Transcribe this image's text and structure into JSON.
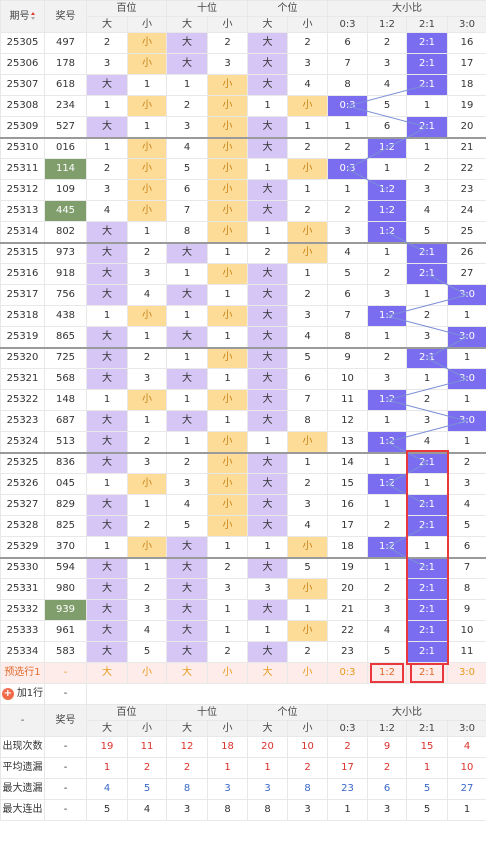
{
  "header": {
    "col_qihao": "期号",
    "col_jianghao": "奖号",
    "bai": "百位",
    "shi": "十位",
    "ge": "个位",
    "dxb": "大小比",
    "da": "大",
    "xiao": "小",
    "r03": "0:3",
    "r12": "1:2",
    "r21": "2:1",
    "r30": "3:0"
  },
  "rows": [
    [
      "25305",
      "497",
      "2",
      "小",
      "大",
      "2",
      "大",
      "2",
      "6",
      "2",
      "2:1",
      "16"
    ],
    [
      "25306",
      "178",
      "3",
      "小",
      "大",
      "3",
      "大",
      "3",
      "7",
      "3",
      "2:1",
      "17"
    ],
    [
      "25307",
      "618",
      "大",
      "1",
      "1",
      "小",
      "大",
      "4",
      "8",
      "4",
      "2:1",
      "18"
    ],
    [
      "25308",
      "234",
      "1",
      "小",
      "2",
      "小",
      "1",
      "小",
      "0:3",
      "5",
      "1",
      "19"
    ],
    [
      "25309",
      "527",
      "大",
      "1",
      "3",
      "小",
      "大",
      "1",
      "1",
      "6",
      "2:1",
      "20"
    ],
    [
      "25310",
      "016",
      "1",
      "小",
      "4",
      "小",
      "大",
      "2",
      "2",
      "1:2",
      "1",
      "21"
    ],
    [
      "25311",
      "114",
      "2",
      "小",
      "5",
      "小",
      "1",
      "小",
      "0:3",
      "1",
      "2",
      "22"
    ],
    [
      "25312",
      "109",
      "3",
      "小",
      "6",
      "小",
      "大",
      "1",
      "1",
      "1:2",
      "3",
      "23"
    ],
    [
      "25313",
      "445",
      "4",
      "小",
      "7",
      "小",
      "大",
      "2",
      "2",
      "1:2",
      "4",
      "24"
    ],
    [
      "25314",
      "802",
      "大",
      "1",
      "8",
      "小",
      "1",
      "小",
      "3",
      "1:2",
      "5",
      "25"
    ],
    [
      "25315",
      "973",
      "大",
      "2",
      "大",
      "1",
      "2",
      "小",
      "4",
      "1",
      "2:1",
      "26"
    ],
    [
      "25316",
      "918",
      "大",
      "3",
      "1",
      "小",
      "大",
      "1",
      "5",
      "2",
      "2:1",
      "27"
    ],
    [
      "25317",
      "756",
      "大",
      "4",
      "大",
      "1",
      "大",
      "2",
      "6",
      "3",
      "1",
      "3:0"
    ],
    [
      "25318",
      "438",
      "1",
      "小",
      "1",
      "小",
      "大",
      "3",
      "7",
      "1:2",
      "2",
      "1"
    ],
    [
      "25319",
      "865",
      "大",
      "1",
      "大",
      "1",
      "大",
      "4",
      "8",
      "1",
      "3",
      "3:0"
    ],
    [
      "25320",
      "725",
      "大",
      "2",
      "1",
      "小",
      "大",
      "5",
      "9",
      "2",
      "2:1",
      "1"
    ],
    [
      "25321",
      "568",
      "大",
      "3",
      "大",
      "1",
      "大",
      "6",
      "10",
      "3",
      "1",
      "3:0"
    ],
    [
      "25322",
      "148",
      "1",
      "小",
      "1",
      "小",
      "大",
      "7",
      "11",
      "1:2",
      "2",
      "1"
    ],
    [
      "25323",
      "687",
      "大",
      "1",
      "大",
      "1",
      "大",
      "8",
      "12",
      "1",
      "3",
      "3:0"
    ],
    [
      "25324",
      "513",
      "大",
      "2",
      "1",
      "小",
      "1",
      "小",
      "13",
      "1:2",
      "4",
      "1"
    ],
    [
      "25325",
      "836",
      "大",
      "3",
      "2",
      "小",
      "大",
      "1",
      "14",
      "1",
      "2:1",
      "2"
    ],
    [
      "25326",
      "045",
      "1",
      "小",
      "3",
      "小",
      "大",
      "2",
      "15",
      "1:2",
      "1",
      "3"
    ],
    [
      "25327",
      "829",
      "大",
      "1",
      "4",
      "小",
      "大",
      "3",
      "16",
      "1",
      "2:1",
      "4"
    ],
    [
      "25328",
      "825",
      "大",
      "2",
      "5",
      "小",
      "大",
      "4",
      "17",
      "2",
      "2:1",
      "5"
    ],
    [
      "25329",
      "370",
      "1",
      "小",
      "大",
      "1",
      "1",
      "小",
      "18",
      "1:2",
      "1",
      "6"
    ],
    [
      "25330",
      "594",
      "大",
      "1",
      "大",
      "2",
      "大",
      "5",
      "19",
      "1",
      "2:1",
      "7"
    ],
    [
      "25331",
      "980",
      "大",
      "2",
      "大",
      "3",
      "3",
      "小",
      "20",
      "2",
      "2:1",
      "8"
    ],
    [
      "25332",
      "939",
      "大",
      "3",
      "大",
      "1",
      "大",
      "1",
      "21",
      "3",
      "2:1",
      "9"
    ],
    [
      "25333",
      "961",
      "大",
      "4",
      "大",
      "1",
      "1",
      "小",
      "22",
      "4",
      "2:1",
      "10"
    ],
    [
      "25334",
      "583",
      "大",
      "5",
      "大",
      "2",
      "大",
      "2",
      "23",
      "5",
      "2:1",
      "11"
    ]
  ],
  "highlight_prize": [
    "25311",
    "25313",
    "25332"
  ],
  "forecast": {
    "label": "预选行1",
    "dash": "-",
    "cells": [
      "大",
      "小",
      "大",
      "小",
      "大",
      "小",
      "0:3",
      "1:2",
      "2:1",
      "3:0"
    ]
  },
  "add_row": {
    "label": "加1行",
    "dash": "-"
  },
  "footer_head": {
    "dash": "-",
    "col_jianghao": "奖号",
    "bai": "百位",
    "shi": "十位",
    "ge": "个位",
    "dxb": "大小比",
    "da": "大",
    "xiao": "小",
    "r03": "0:3",
    "r12": "1:2",
    "r21": "2:1",
    "r30": "3:0"
  },
  "stats": [
    {
      "label": "出现次数",
      "dash": "-",
      "values": [
        "19",
        "11",
        "12",
        "18",
        "20",
        "10",
        "2",
        "9",
        "15",
        "4"
      ],
      "color": "red"
    },
    {
      "label": "平均遗漏",
      "dash": "-",
      "values": [
        "1",
        "2",
        "2",
        "1",
        "1",
        "2",
        "17",
        "2",
        "1",
        "10"
      ],
      "color": "red"
    },
    {
      "label": "最大遗漏",
      "dash": "-",
      "values": [
        "4",
        "5",
        "8",
        "3",
        "3",
        "8",
        "23",
        "6",
        "5",
        "27"
      ],
      "color": "blue"
    },
    {
      "label": "最大连出",
      "dash": "-",
      "values": [
        "5",
        "4",
        "3",
        "8",
        "8",
        "3",
        "1",
        "3",
        "5",
        "1"
      ],
      "color": "plain"
    }
  ],
  "colors": {
    "big_bg": "#d6c6f6",
    "small_bg": "#fcdc96",
    "small_fg": "#c9821a",
    "ratio_bg": "#7b6df0",
    "prize_hl": "#7f9e6c",
    "forecast_bg": "#fdecea",
    "line": "#7b8fd6",
    "red_box": "#e8383d"
  }
}
